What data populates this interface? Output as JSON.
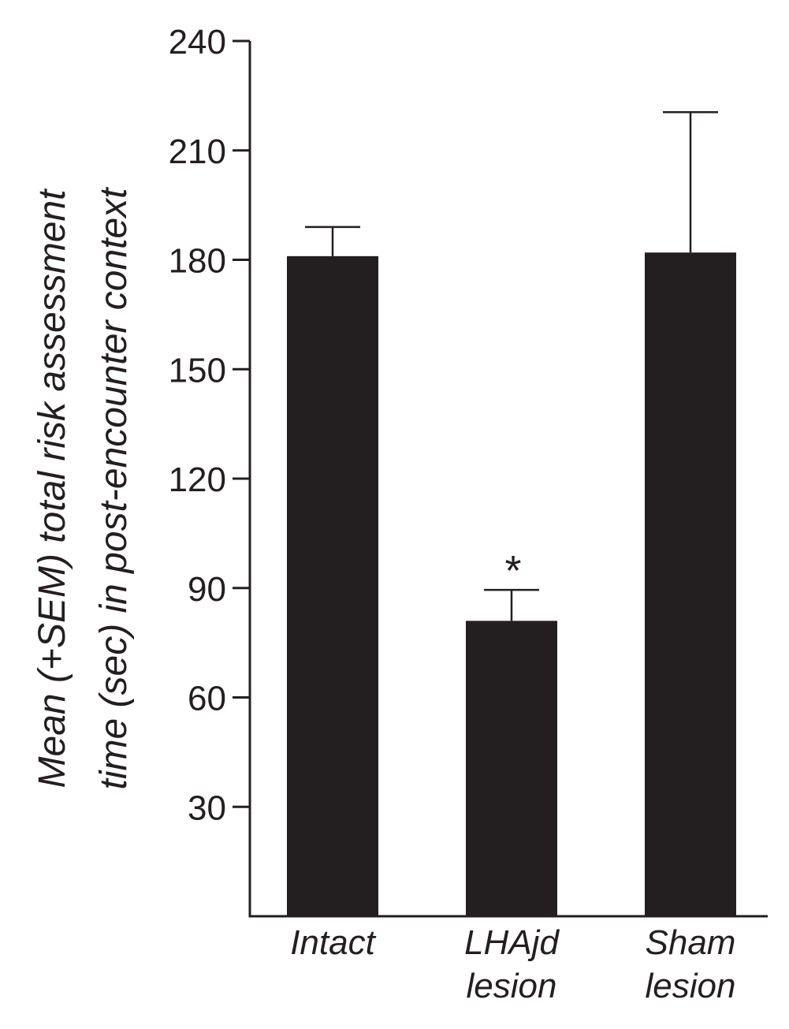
{
  "chart_data": {
    "type": "bar",
    "categories": [
      [
        "Intact"
      ],
      [
        "LHAjd",
        "lesion"
      ],
      [
        "Sham",
        "lesion"
      ]
    ],
    "values": [
      181,
      81,
      182
    ],
    "errors_plus": [
      8,
      8.5,
      38.5
    ],
    "significance": [
      "",
      "*",
      ""
    ],
    "ylabel_lines": [
      "Mean (+SEM) total risk assessment",
      "time (sec) in post-encounter context"
    ],
    "ylim": [
      0,
      240
    ],
    "yticks": [
      30,
      60,
      90,
      120,
      150,
      180,
      210,
      240
    ],
    "grid": false,
    "legend": "none",
    "colors": {
      "bar": "#231f20",
      "axis": "#231f20",
      "text": "#231f20"
    }
  }
}
